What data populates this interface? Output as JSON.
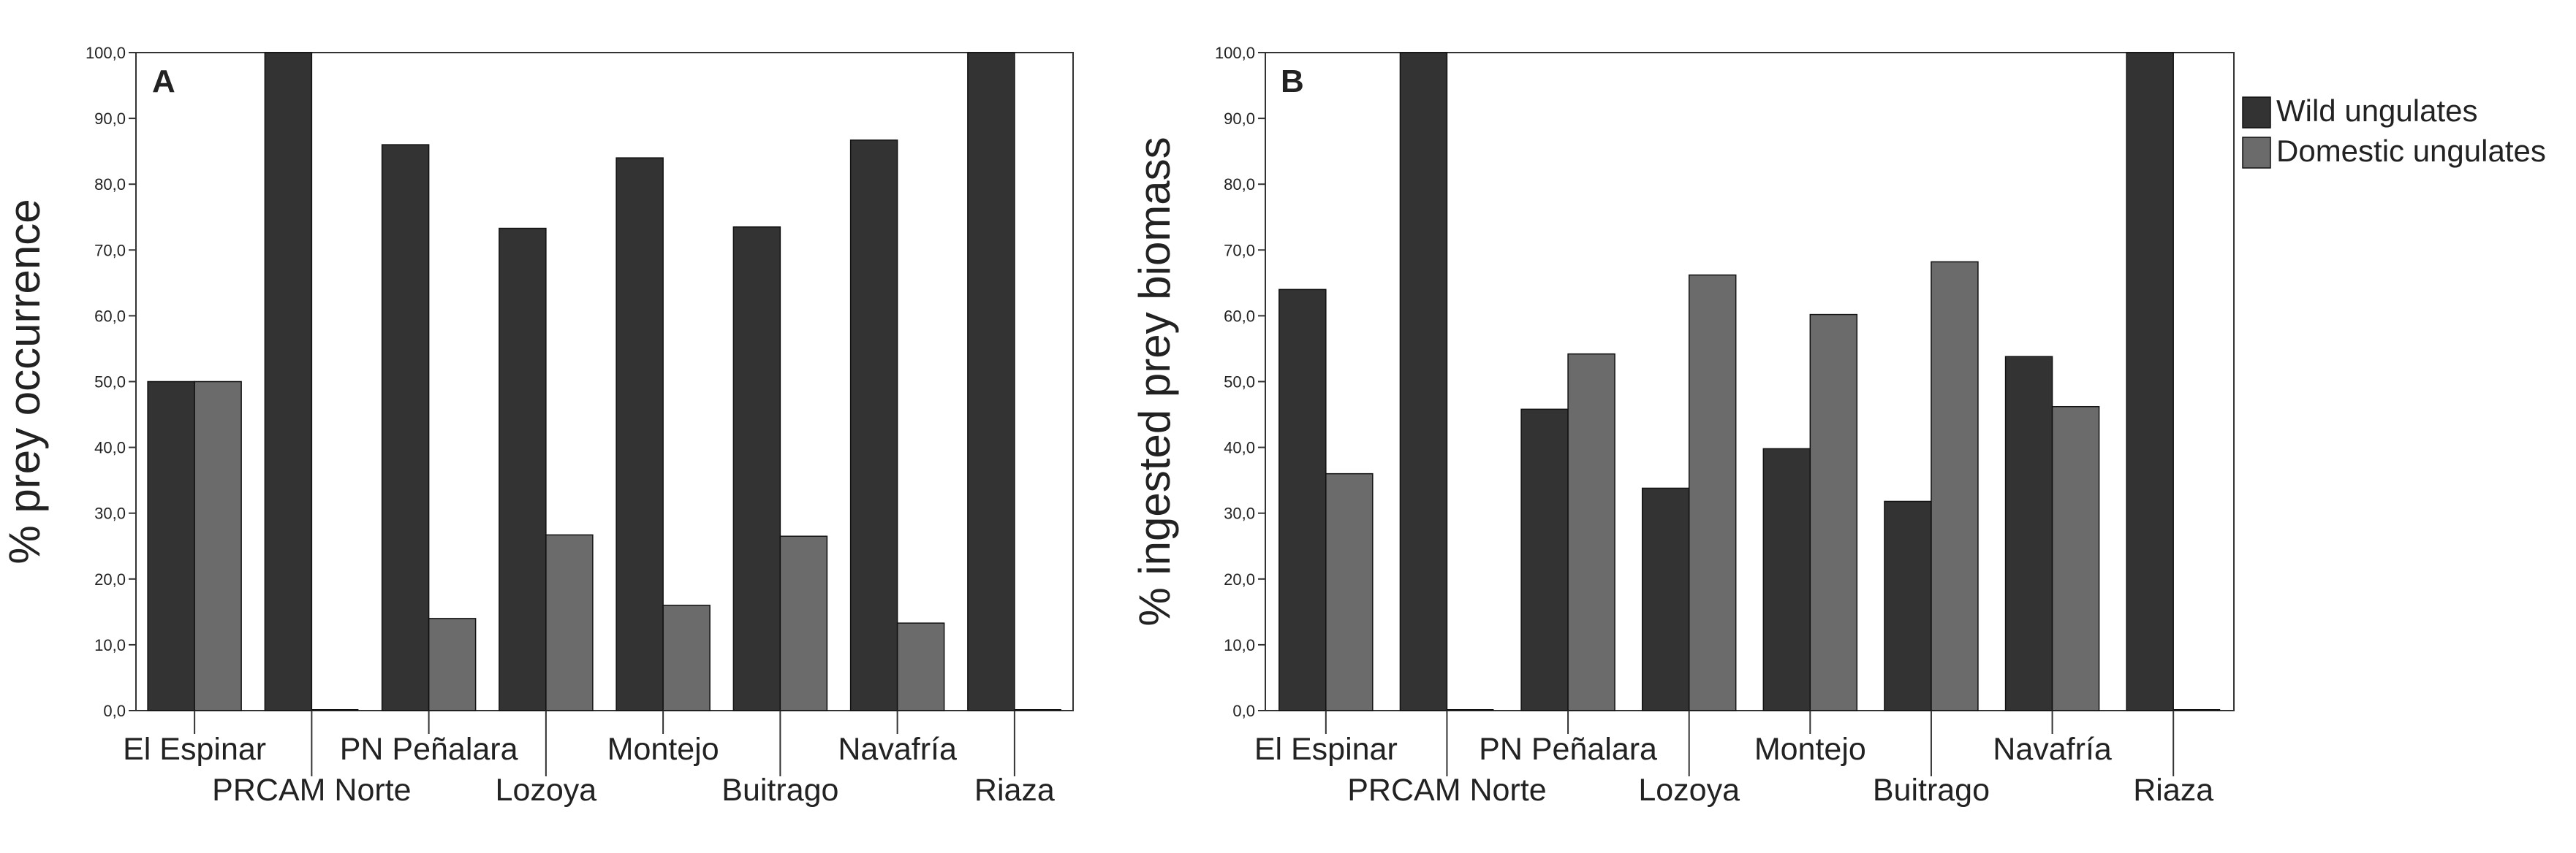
{
  "chart_data": [
    {
      "type": "bar",
      "panel_label": "A",
      "title": "",
      "xlabel": "",
      "ylabel": "% prey occurrence",
      "ylim": [
        0,
        100
      ],
      "yticks": [
        "0,0",
        "10,0",
        "20,0",
        "30,0",
        "40,0",
        "50,0",
        "60,0",
        "70,0",
        "80,0",
        "90,0",
        "100,0"
      ],
      "categories": [
        "El Espinar",
        "PRCAM Norte",
        "PN Peñalara",
        "Lozoya",
        "Montejo",
        "Buitrago",
        "Navafría",
        "Riaza"
      ],
      "series": [
        {
          "name": "Wild ungulates",
          "color": "#333333",
          "values": [
            50,
            100,
            86,
            73.3,
            84,
            73.5,
            86.7,
            100
          ]
        },
        {
          "name": "Domestic ungulates",
          "color": "#6b6b6b",
          "values": [
            50,
            0,
            14,
            26.7,
            16,
            26.5,
            13.3,
            0
          ]
        }
      ],
      "grid": false
    },
    {
      "type": "bar",
      "panel_label": "B",
      "title": "",
      "xlabel": "",
      "ylabel": "% ingested prey biomass",
      "ylim": [
        0,
        100
      ],
      "yticks": [
        "0,0",
        "10,0",
        "20,0",
        "30,0",
        "40,0",
        "50,0",
        "60,0",
        "70,0",
        "80,0",
        "90,0",
        "100,0"
      ],
      "categories": [
        "El Espinar",
        "PRCAM Norte",
        "PN Peñalara",
        "Lozoya",
        "Montejo",
        "Buitrago",
        "Navafría",
        "Riaza"
      ],
      "series": [
        {
          "name": "Wild ungulates",
          "color": "#333333",
          "values": [
            64,
            100,
            45.8,
            33.8,
            39.8,
            31.8,
            53.8,
            100
          ]
        },
        {
          "name": "Domestic ungulates",
          "color": "#6b6b6b",
          "values": [
            36,
            0,
            54.2,
            66.2,
            60.2,
            68.2,
            46.2,
            0
          ]
        }
      ],
      "grid": false
    }
  ],
  "legend": {
    "placement": "top-right",
    "items": [
      {
        "label": "Wild ungulates",
        "color": "#333333"
      },
      {
        "label": "Domestic ungulates",
        "color": "#6b6b6b"
      }
    ]
  }
}
